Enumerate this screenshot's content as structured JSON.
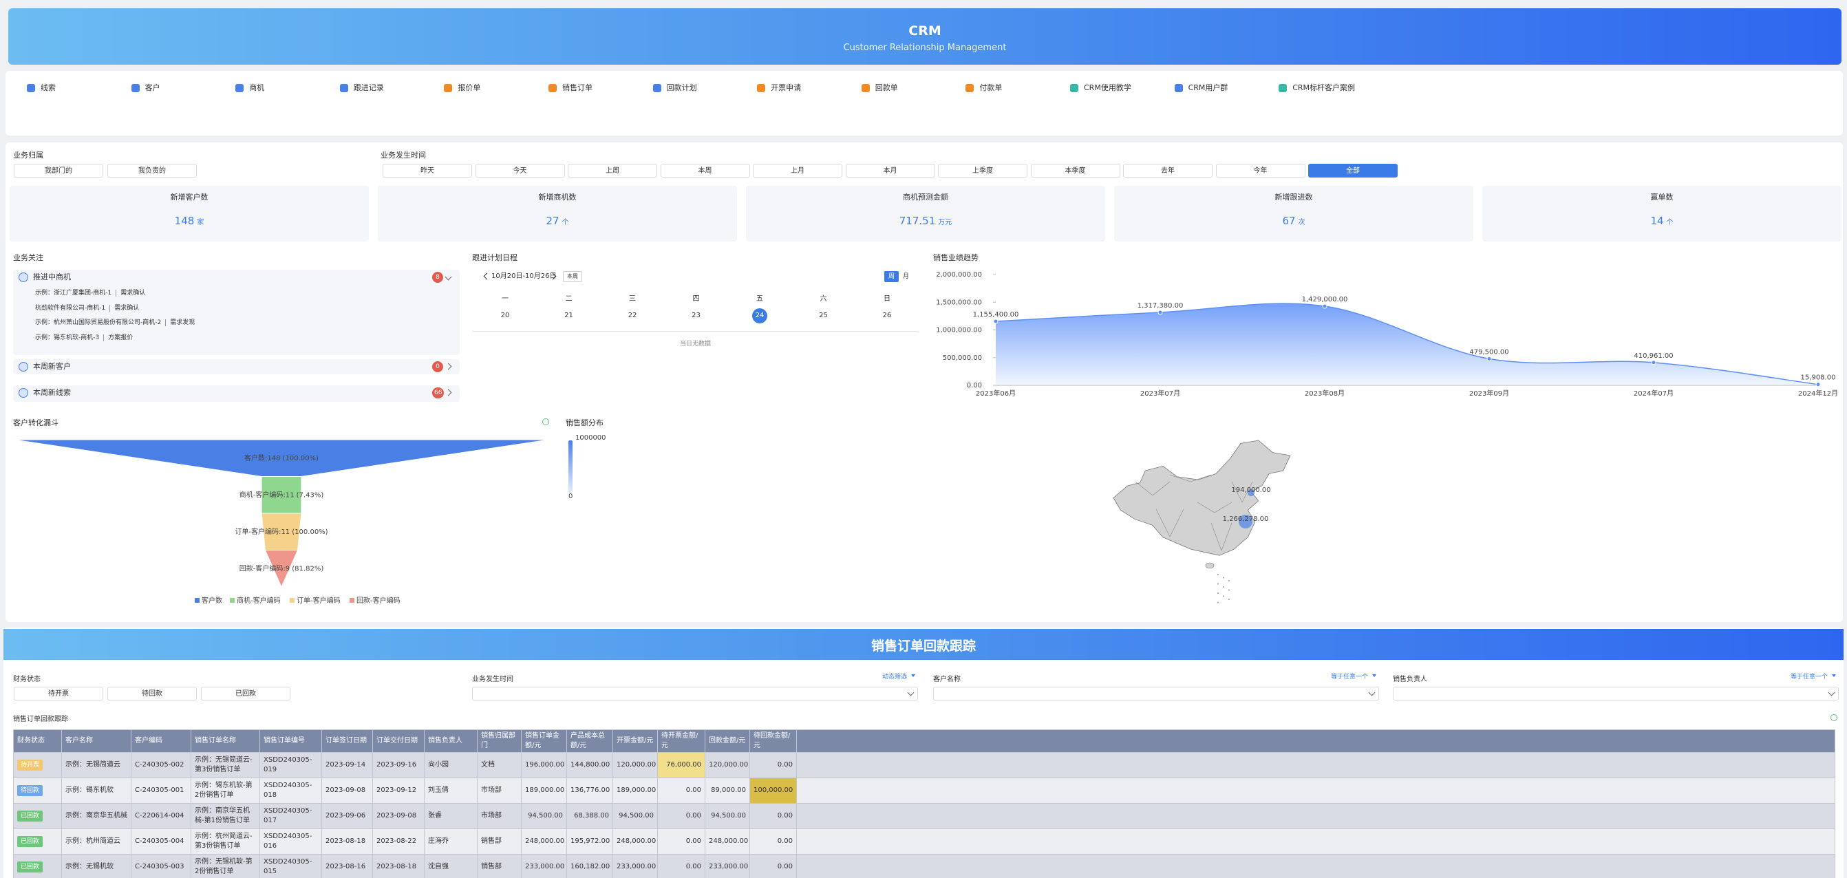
{
  "header": {
    "title": "CRM",
    "subtitle": "Customer Relationship Management"
  },
  "nav": [
    "线索",
    "客户",
    "商机",
    "跟进记录",
    "报价单",
    "销售订单",
    "回款计划",
    "开票申请",
    "回款单",
    "付款单",
    "CRM使用教学",
    "CRM用户群",
    "CRM标杆客户案例"
  ],
  "filters": {
    "owner_label": "业务归属",
    "owner_options": [
      "我部门的",
      "我负责的"
    ],
    "time_label": "业务发生时间",
    "time_options": [
      "昨天",
      "今天",
      "上周",
      "本周",
      "上月",
      "本月",
      "上季度",
      "本季度",
      "去年",
      "今年",
      "全部"
    ],
    "time_active": "全部"
  },
  "stats": [
    {
      "label": "新增客户数",
      "value": 148,
      "unit": "家"
    },
    {
      "label": "新增商机数",
      "value": 27,
      "unit": "个"
    },
    {
      "label": "商机预测金额",
      "value": 717.51,
      "unit": "万元"
    },
    {
      "label": "新增跟进数",
      "value": 67,
      "unit": "次"
    },
    {
      "label": "赢单数",
      "value": 14,
      "unit": "个"
    }
  ],
  "focus": {
    "title": "业务关注",
    "groups": [
      {
        "name": "推进中商机",
        "count": 8,
        "items": [
          {
            "name": "示例：浙江广厦集团-商机-1",
            "stage": "需求确认"
          },
          {
            "name": "杭劲软件有限公司-商机-1",
            "stage": "需求确认"
          },
          {
            "name": "示例：杭州萧山国际贸易股份有限公司-商机-2",
            "stage": "需求发现"
          },
          {
            "name": "示例：锡东机软-商机-3",
            "stage": "方案报价"
          }
        ]
      },
      {
        "name": "本周新客户",
        "count": 0
      },
      {
        "name": "本周新线索",
        "count": 66
      }
    ]
  },
  "schedule": {
    "title": "跟进计划日程",
    "range": "10月20日-10月26日",
    "this_week": "本周",
    "views": [
      "周",
      "月"
    ],
    "active_view": "周",
    "weekdays": [
      "一",
      "二",
      "三",
      "四",
      "五",
      "六",
      "日"
    ],
    "dates": [
      20,
      21,
      22,
      23,
      24,
      25,
      26
    ],
    "selected": 24,
    "empty": "当日无数据"
  },
  "chart_data": [
    {
      "type": "line",
      "title": "销售业绩趋势",
      "categories": [
        "2023年06月",
        "2023年07月",
        "2023年08月",
        "2023年09月",
        "2024年07月",
        "2024年12月"
      ],
      "values": [
        1155400,
        1317380,
        1429000,
        479500,
        410961,
        15908
      ],
      "value_labels": [
        "1,155,400.00",
        "1,317,380.00",
        "1,429,000.00",
        "479,500.00",
        "410,961.00",
        "15,908.00"
      ],
      "color": "#5b8ff9",
      "ylim": [
        0,
        2000000
      ],
      "yticks": [
        {
          "value": 0,
          "label": "0.00"
        },
        {
          "value": 500000,
          "label": "500,000.00"
        },
        {
          "value": 1000000,
          "label": "1,000,000.00"
        },
        {
          "value": 1500000,
          "label": "1,500,000.00"
        },
        {
          "value": 2000000,
          "label": "2,000,000.00"
        }
      ]
    },
    {
      "type": "funnel",
      "title": "客户转化漏斗",
      "categories": [
        "客户数",
        "商机-客户编码",
        "订单-客户编码",
        "回款-客户编码"
      ],
      "values": [
        148,
        11,
        11,
        9
      ],
      "value_labels": [
        "客户数:148 (100.00%)",
        "商机-客户编码:11 (7.43%)",
        "订单-客户编码:11 (100.00%)",
        "回款-客户编码:9 (81.82%)"
      ],
      "colors": [
        "#4a80e6",
        "#8fd68f",
        "#f5d18a",
        "#ef968c"
      ]
    },
    {
      "type": "map",
      "title": "销售额分布",
      "values": [
        194000,
        1266278
      ],
      "value_labels": [
        "194,000.00",
        "1,266,278.00"
      ],
      "vlim": [
        0,
        1000000
      ],
      "color": "#4a80e6"
    }
  ],
  "order_tracking": {
    "banner": "销售订单回款跟踪",
    "status_filter": {
      "label": "财务状态",
      "options": [
        "待开票",
        "待回款",
        "已回款"
      ]
    },
    "dropdown_filters": [
      {
        "label": "业务发生时间",
        "mode": "动态筛选"
      },
      {
        "label": "客户名称",
        "mode": "等于任意一个"
      },
      {
        "label": "销售负责人",
        "mode": "等于任意一个"
      }
    ],
    "table": {
      "title": "销售订单回款跟踪",
      "status_colors": {
        "待开票": "#f4c66e",
        "待回款": "#6fa8e8",
        "已回款": "#6cc77a"
      },
      "highlight_columns": [
        {
          "column": 12,
          "color": "#f1df8c"
        },
        {
          "column": 14,
          "color": "#d9bd46"
        }
      ],
      "columns": [
        "财务状态",
        "客户名称",
        "客户编码",
        "销售订单名称",
        "销售订单编号",
        "订单签订日期",
        "订单交付日期",
        "销售负责人",
        "销售归属部门",
        "销售订单金额/元",
        "产品成本总额/元",
        "开票金额/元",
        "待开票金额/元",
        "回款金额/元",
        "待回款金额/元"
      ],
      "rows": [
        [
          "待开票",
          "示例：无锡简道云",
          "C-240305-002",
          "示例：无锡简道云-第3份销售订单",
          "XSDD240305-019",
          "2023-09-14",
          "2023-09-16",
          "向小园",
          "文档",
          "196,000.00",
          "144,800.00",
          "120,000.00",
          "76,000.00",
          "120,000.00",
          "0.00"
        ],
        [
          "待回款",
          "示例：锡东机软",
          "C-240305-001",
          "示例：锡东机软-第2份销售订单",
          "XSDD240305-018",
          "2023-09-08",
          "2023-09-12",
          "刘玉倩",
          "市场部",
          "189,000.00",
          "136,776.00",
          "189,000.00",
          "0.00",
          "89,000.00",
          "100,000.00"
        ],
        [
          "已回款",
          "示例：南京华五机械",
          "C-220614-004",
          "示例：南京华五机械-第1份销售订单",
          "XSDD240305-017",
          "2023-09-06",
          "2023-09-08",
          "张睿",
          "市场部",
          "94,500.00",
          "68,388.00",
          "94,500.00",
          "0.00",
          "94,500.00",
          "0.00"
        ],
        [
          "已回款",
          "示例：杭州简道云",
          "C-240305-004",
          "示例：杭州简道云-第3份销售订单",
          "XSDD240305-016",
          "2023-08-18",
          "2023-08-22",
          "庄海乔",
          "销售部",
          "248,000.00",
          "195,972.00",
          "248,000.00",
          "0.00",
          "248,000.00",
          "0.00"
        ],
        [
          "已回款",
          "示例：无锡机软",
          "C-240305-003",
          "示例：无锡机软-第2份销售订单",
          "XSDD240305-015",
          "2023-08-16",
          "2023-08-18",
          "沈自强",
          "销售部",
          "233,000.00",
          "160,182.00",
          "233,000.00",
          "0.00",
          "233,000.00",
          "0.00"
        ]
      ]
    }
  }
}
